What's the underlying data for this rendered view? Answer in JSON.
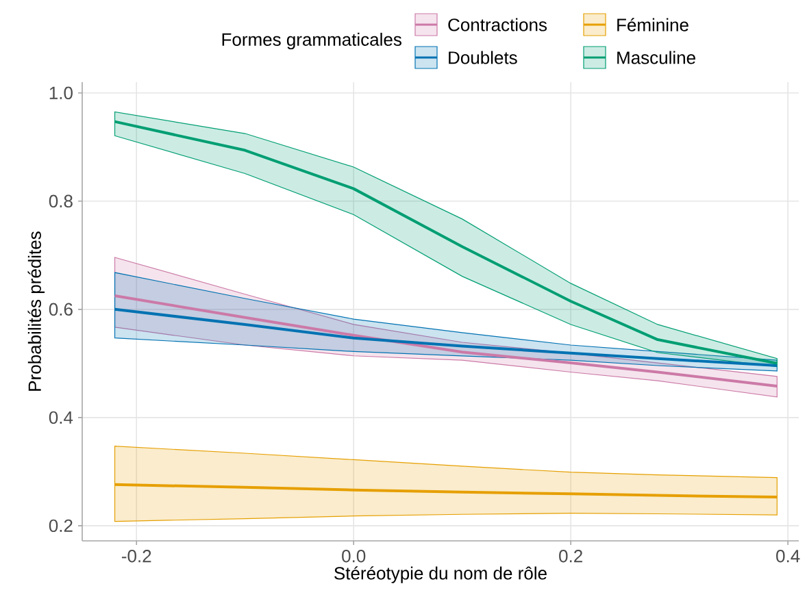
{
  "chart_data": {
    "type": "line",
    "xlabel": "Stéréotypie du nom de rôle",
    "ylabel": "Probabilités prédites",
    "legend_title": "Formes grammaticales",
    "legend": "top",
    "grid": true,
    "x": [
      -0.22,
      -0.1,
      0,
      0.1,
      0.2,
      0.28,
      0.39
    ],
    "xlim": [
      -0.25,
      0.41
    ],
    "ylim": [
      0.172,
      1.02
    ],
    "xticks": [
      {
        "value": -0.2,
        "label": "-0.2"
      },
      {
        "value": 0,
        "label": "0.0"
      },
      {
        "value": 0.2,
        "label": "0.2"
      },
      {
        "value": 0.4,
        "label": "0.4"
      }
    ],
    "yticks": [
      {
        "value": 0.2,
        "label": "0.2"
      },
      {
        "value": 0.4,
        "label": "0.4"
      },
      {
        "value": 0.6,
        "label": "0.6"
      },
      {
        "value": 0.8,
        "label": "0.8"
      },
      {
        "value": 1,
        "label": "1.0"
      }
    ],
    "series": [
      {
        "name": "Contractions",
        "color": "#cc79a7",
        "values": [
          0.625,
          0.585,
          0.552,
          0.521,
          0.501,
          0.484,
          0.458
        ],
        "lower": [
          0.567,
          0.534,
          0.514,
          0.506,
          0.484,
          0.468,
          0.438
        ],
        "upper": [
          0.696,
          0.628,
          0.572,
          0.539,
          0.519,
          0.501,
          0.476
        ]
      },
      {
        "name": "Doublets",
        "color": "#0072b2",
        "values": [
          0.6,
          0.572,
          0.547,
          0.532,
          0.519,
          0.509,
          0.496
        ],
        "lower": [
          0.547,
          0.534,
          0.522,
          0.514,
          0.506,
          0.496,
          0.486
        ],
        "upper": [
          0.668,
          0.62,
          0.582,
          0.557,
          0.534,
          0.522,
          0.506
        ]
      },
      {
        "name": "Féminine",
        "color": "#e69f00",
        "values": [
          0.276,
          0.271,
          0.266,
          0.262,
          0.259,
          0.256,
          0.253
        ],
        "lower": [
          0.208,
          0.213,
          0.218,
          0.221,
          0.223,
          0.222,
          0.22
        ],
        "upper": [
          0.347,
          0.334,
          0.322,
          0.31,
          0.299,
          0.294,
          0.289
        ]
      },
      {
        "name": "Masculine",
        "color": "#009e73",
        "values": [
          0.947,
          0.894,
          0.823,
          0.716,
          0.615,
          0.544,
          0.5
        ],
        "lower": [
          0.921,
          0.851,
          0.775,
          0.661,
          0.572,
          0.52,
          0.494
        ],
        "upper": [
          0.965,
          0.925,
          0.863,
          0.767,
          0.648,
          0.572,
          0.509
        ]
      }
    ]
  }
}
